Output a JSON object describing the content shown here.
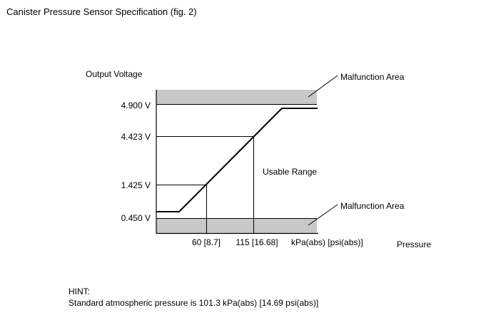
{
  "title": "Canister Pressure Sensor Specification (fig. 2)",
  "diagram": {
    "y_axis_label": "Output Voltage",
    "x_axis_label": "Pressure",
    "x_unit_label": "kPa(abs) [psi(abs)]",
    "y_ticks": [
      "4.900 V",
      "4.423 V",
      "1.425 V",
      "0.450 V"
    ],
    "x_ticks": [
      "60 [8.7]",
      "115 [16.68]"
    ],
    "malfunction_upper": "Malfunction Area",
    "malfunction_lower": "Malfunction Area",
    "usable_range": "Usable Range",
    "colors": {
      "malfunction_band": "#c8c8c8",
      "line": "#000000"
    }
  },
  "hint": {
    "heading": "HINT:",
    "text": "Standard atmospheric pressure is 101.3 kPa(abs) [14.69 psi(abs)]"
  }
}
